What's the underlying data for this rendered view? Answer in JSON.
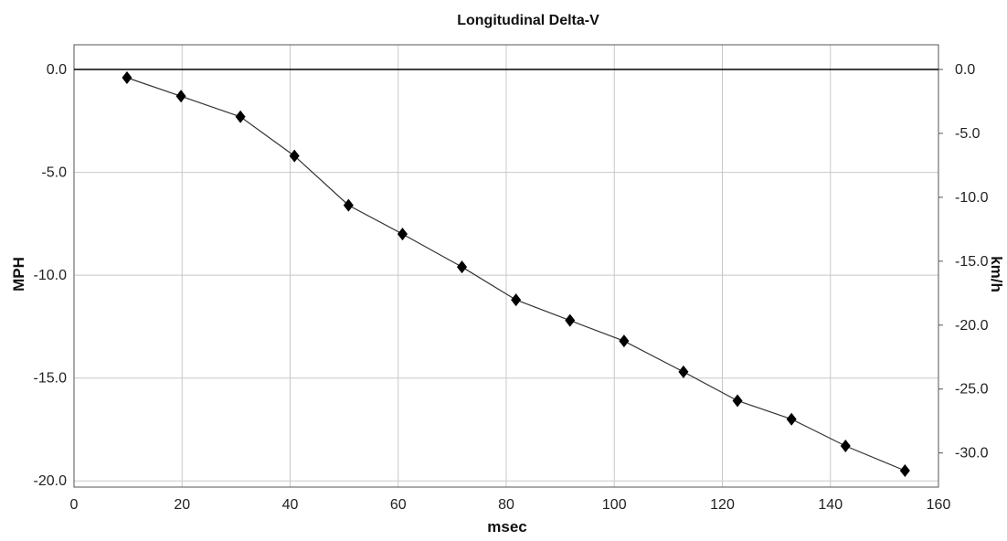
{
  "chart_data": {
    "type": "line",
    "title": "Longitudinal Delta-V",
    "xlabel": "msec",
    "ylabel": "MPH",
    "y2label": "km/h",
    "xlim": [
      0,
      160
    ],
    "ylim": [
      -20.3,
      1.2
    ],
    "xticks": [
      0,
      20,
      40,
      60,
      80,
      100,
      120,
      140,
      160
    ],
    "yticks": [
      {
        "value": 0,
        "label": "0.0"
      },
      {
        "value": -5,
        "label": "-5.0"
      },
      {
        "value": -10,
        "label": "-10.0"
      },
      {
        "value": -15,
        "label": "-15.0"
      },
      {
        "value": -20,
        "label": "-20.0"
      }
    ],
    "y2ticks": [
      {
        "value": 0,
        "label": "0.0"
      },
      {
        "value": -5,
        "label": "-5.0"
      },
      {
        "value": -10,
        "label": "-10.0"
      },
      {
        "value": -15,
        "label": "-15.0"
      },
      {
        "value": -20,
        "label": "-20.0"
      },
      {
        "value": -25,
        "label": "-25.0"
      },
      {
        "value": -30,
        "label": "-30.0"
      }
    ],
    "grid": true,
    "marker": "diamond",
    "series": [
      {
        "x": [
          9.8,
          19.8,
          30.8,
          40.8,
          50.8,
          60.8,
          71.8,
          81.8,
          91.8,
          101.8,
          112.8,
          122.8,
          132.8,
          142.8,
          153.8
        ],
        "y": [
          -0.4,
          -1.3,
          -2.3,
          -4.2,
          -6.6,
          -8.0,
          -9.6,
          -11.2,
          -12.2,
          -13.2,
          -14.7,
          -16.1,
          -17.0,
          -18.3,
          -19.5
        ]
      }
    ],
    "colors": {
      "line": "#333333",
      "marker": "#000000",
      "grid": "#c8c8c8",
      "zero_line": "#000000",
      "axis": "#555555"
    }
  }
}
